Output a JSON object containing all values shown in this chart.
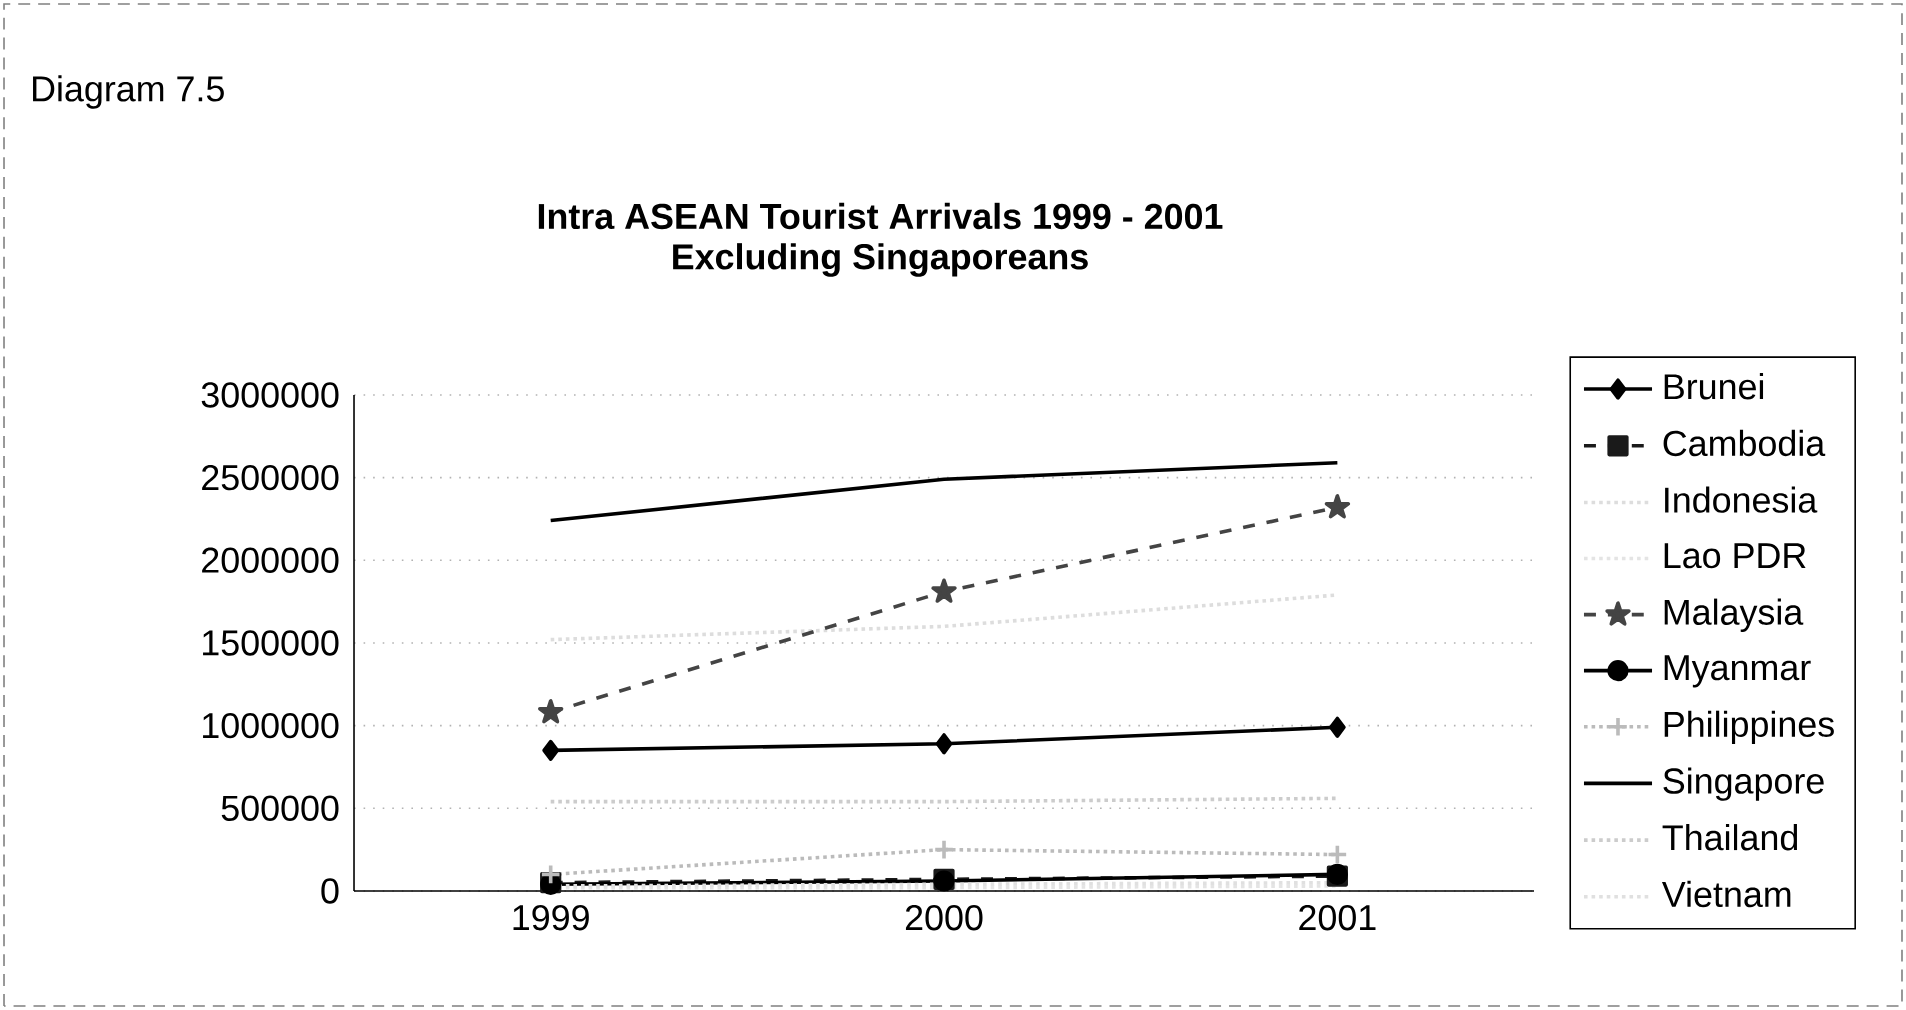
{
  "chart_data": {
    "type": "line",
    "title": "Intra ASEAN Tourist Arrivals 1999 - 2001",
    "subtitle": "Excluding Singaporeans",
    "annotations": [
      "Diagram 7.5"
    ],
    "categories": [
      "1999",
      "2000",
      "2001"
    ],
    "ylim": [
      0,
      3000000
    ],
    "yticks": [
      0,
      500000,
      1000000,
      1500000,
      2000000,
      2500000,
      3000000
    ],
    "grid": "y",
    "legend": "right",
    "series": [
      {
        "name": "Brunei",
        "color": "#000000",
        "marker": "diamond",
        "line_style": "solid",
        "values": [
          850000,
          890000,
          990000
        ]
      },
      {
        "name": "Cambodia",
        "color": "#1a1a1a",
        "marker": "square",
        "line_style": "dashed",
        "values": [
          50000,
          70000,
          90000
        ]
      },
      {
        "name": "Indonesia",
        "color": "#dddddd",
        "marker": "none",
        "line_style": "dotted",
        "values": [
          1520000,
          1600000,
          1790000
        ]
      },
      {
        "name": "Lao PDR",
        "color": "#e4e4e4",
        "marker": "none",
        "line_style": "dotted",
        "values": [
          20000,
          20000,
          30000
        ]
      },
      {
        "name": "Malaysia",
        "color": "#444444",
        "marker": "star",
        "line_style": "dashed",
        "values": [
          1080000,
          1810000,
          2320000
        ]
      },
      {
        "name": "Myanmar",
        "color": "#000000",
        "marker": "circle",
        "line_style": "solid",
        "values": [
          40000,
          60000,
          100000
        ]
      },
      {
        "name": "Philippines",
        "color": "#bbbbbb",
        "marker": "cross",
        "line_style": "dotted",
        "values": [
          100000,
          250000,
          220000
        ]
      },
      {
        "name": "Singapore",
        "color": "#000000",
        "marker": "none",
        "line_style": "solid",
        "values": [
          2240000,
          2490000,
          2590000
        ]
      },
      {
        "name": "Thailand",
        "color": "#cccccc",
        "marker": "none",
        "line_style": "dotted",
        "values": [
          540000,
          540000,
          560000
        ]
      },
      {
        "name": "Vietnam",
        "color": "#e0e0e0",
        "marker": "none",
        "line_style": "dotted",
        "values": [
          30000,
          40000,
          50000
        ]
      }
    ]
  }
}
